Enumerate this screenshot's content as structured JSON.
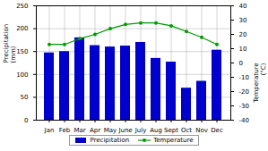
{
  "chart_data": {
    "type": "bar",
    "categories": [
      "Jan",
      "Feb",
      "Mar",
      "Apr",
      "May",
      "June",
      "July",
      "Aug",
      "Sept",
      "Oct",
      "Nov",
      "Dec"
    ],
    "series": [
      {
        "name": "Precipitation",
        "type": "bar",
        "color": "#0000cc",
        "values": [
          147,
          150,
          180,
          163,
          160,
          162,
          170,
          135,
          127,
          70,
          85,
          153
        ]
      },
      {
        "name": "Temperature",
        "type": "line",
        "color": "#009900",
        "marker": "circle",
        "axis": "y2",
        "values": [
          13,
          13,
          17,
          20,
          24,
          27,
          28,
          28,
          26,
          22,
          18,
          13
        ]
      }
    ],
    "ylabel": "Precipitation\n(mm)",
    "y2label": "Temperature\n(°C)",
    "ylim": [
      0,
      250
    ],
    "yticks": [
      0,
      50,
      100,
      150,
      200,
      250
    ],
    "y2lim": [
      -40,
      40
    ],
    "y2ticks": [
      -40,
      -30,
      -20,
      -10,
      0,
      10,
      20,
      30,
      40
    ],
    "grid": true,
    "legend": "bottom"
  }
}
